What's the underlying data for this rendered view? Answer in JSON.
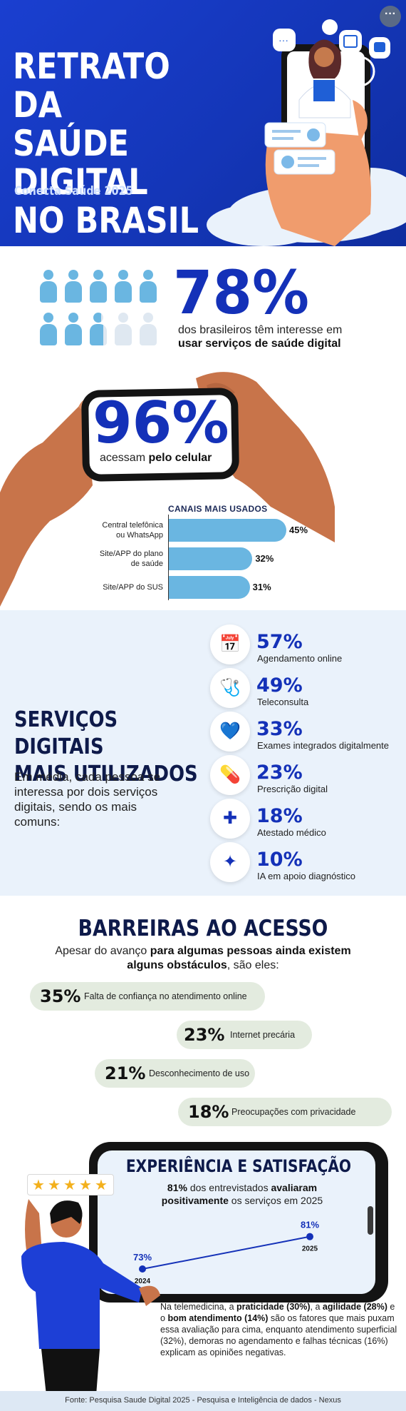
{
  "header": {
    "title_lines": [
      "RETRATO DA",
      "SAÚDE DIGITAL",
      "NO BRASIL"
    ],
    "subtitle": "Conecta Saúde 2025",
    "more_label": "···"
  },
  "interest": {
    "percent": "78%",
    "text": "dos brasileiros têm interesse em",
    "text_strong": "usar serviços de saúde digital",
    "filled_fraction": 0.78
  },
  "mobile": {
    "percent": "96%",
    "text": "acessam ",
    "text_strong": "pelo celular"
  },
  "channels": {
    "title": "CANAIS MAIS USADOS",
    "items": [
      {
        "label_lines": [
          "Central telefônica",
          "ou WhatsApp"
        ],
        "value": 45,
        "label": "45%"
      },
      {
        "label_lines": [
          "Site/APP do plano",
          "de saúde"
        ],
        "value": 32,
        "label": "32%"
      },
      {
        "label_lines": [
          "Site/APP do SUS"
        ],
        "value": 31,
        "label": "31%"
      }
    ]
  },
  "chart_data": {
    "type": "bar",
    "title": "CANAIS MAIS USADOS",
    "categories": [
      "Central telefônica ou WhatsApp",
      "Site/APP do plano de saúde",
      "Site/APP do SUS"
    ],
    "values": [
      45,
      32,
      31
    ],
    "xlabel": "",
    "ylabel": ""
  },
  "services": {
    "title_lines": [
      "SERVIÇOS DIGITAIS",
      "MAIS UTILIZADOS"
    ],
    "description": "Em média, cada pessoa se interessa por dois serviços digitais, sendo os mais comuns:",
    "items": [
      {
        "percent": "57%",
        "label": "Agendamento online",
        "icon": "calendar-icon",
        "glyph": "📅"
      },
      {
        "percent": "49%",
        "label": "Teleconsulta",
        "icon": "stethoscope-icon",
        "glyph": "🩺"
      },
      {
        "percent": "33%",
        "label": "Exames integrados digitalmente",
        "icon": "heartbeat-icon",
        "glyph": "💙"
      },
      {
        "percent": "23%",
        "label": "Prescrição digital",
        "icon": "pills-icon",
        "glyph": "💊"
      },
      {
        "percent": "18%",
        "label": "Atestado médico",
        "icon": "medical-kit-icon",
        "glyph": "✚"
      },
      {
        "percent": "10%",
        "label": "IA em apoio diagnóstico",
        "icon": "sparkle-icon",
        "glyph": "✦"
      }
    ]
  },
  "barriers": {
    "title": "BARREIRAS AO ACESSO",
    "desc_prefix": "Apesar do avanço ",
    "desc_strong": "para algumas pessoas ainda existem alguns obstáculos",
    "desc_suffix": ", são eles:",
    "items": [
      {
        "percent": "35%",
        "label": "Falta de confiança no atendimento online"
      },
      {
        "percent": "23%",
        "label": "Internet precária"
      },
      {
        "percent": "21%",
        "label": "Desconhecimento de uso"
      },
      {
        "percent": "18%",
        "label": "Preocupações com privacidade"
      }
    ]
  },
  "satisfaction": {
    "title": "EXPERIÊNCIA E SATISFAÇÃO",
    "desc_prefix": "81% ",
    "desc_mid": "dos entrevistados ",
    "desc_strong1": "avaliaram",
    "desc_strong2": "positivamente",
    "desc_suffix": " os serviços em 2025",
    "points": [
      {
        "year": "2024",
        "value": 73,
        "label": "73%"
      },
      {
        "year": "2025",
        "value": 81,
        "label": "81%"
      }
    ],
    "stars": 5,
    "text_parts": [
      {
        "t": "Na telemedicina, a ",
        "b": false
      },
      {
        "t": "praticidade (30%)",
        "b": true
      },
      {
        "t": ", a ",
        "b": false
      },
      {
        "t": "agilidade (28%)",
        "b": true
      },
      {
        "t": " e o ",
        "b": false
      },
      {
        "t": "bom atendimento (14%)",
        "b": true
      },
      {
        "t": " são os fatores que mais puxam essa avaliação para cima, enquanto atendimento superficial (32%), demoras no agendamento e falhas técnicas (16%) explicam as opiniões negativas.",
        "b": false
      }
    ]
  },
  "footer": {
    "source": "Fonte: Pesquisa Saude Digital 2025 - Pesquisa e Inteligência de dados - Nexus"
  },
  "colors": {
    "brand_blue": "#1431b8",
    "bar_blue": "#6ab6e1",
    "person_filled": "#6ab6e1",
    "person_empty": "#dfe8f1",
    "barrier_bg": "#e3ebdf"
  }
}
